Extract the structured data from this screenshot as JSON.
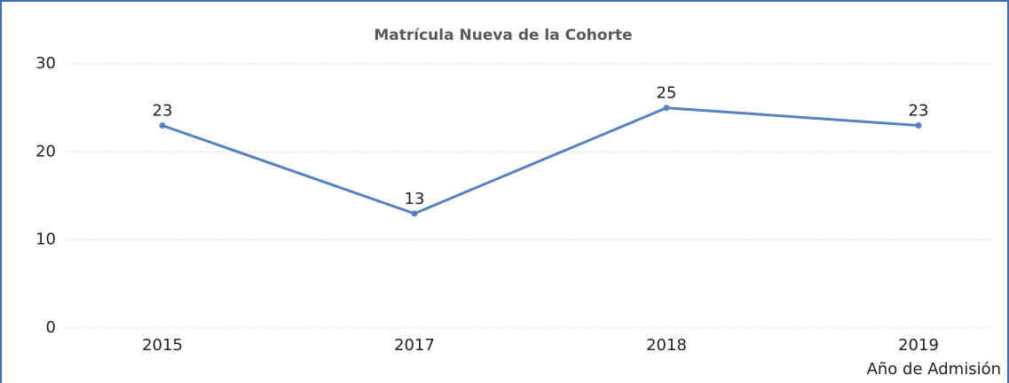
{
  "chart_data": {
    "type": "line",
    "title": "Matrícula Nueva de la Cohorte",
    "categories": [
      "2015",
      "2017",
      "2018",
      "2019"
    ],
    "series": [
      {
        "name": null,
        "color": "#5682c0",
        "values": [
          23,
          13,
          25,
          23
        ]
      }
    ],
    "x_label": "Año de Admisión",
    "ylim": [
      0,
      30
    ],
    "yticks": [
      0,
      10,
      20,
      30
    ],
    "grid": true
  }
}
